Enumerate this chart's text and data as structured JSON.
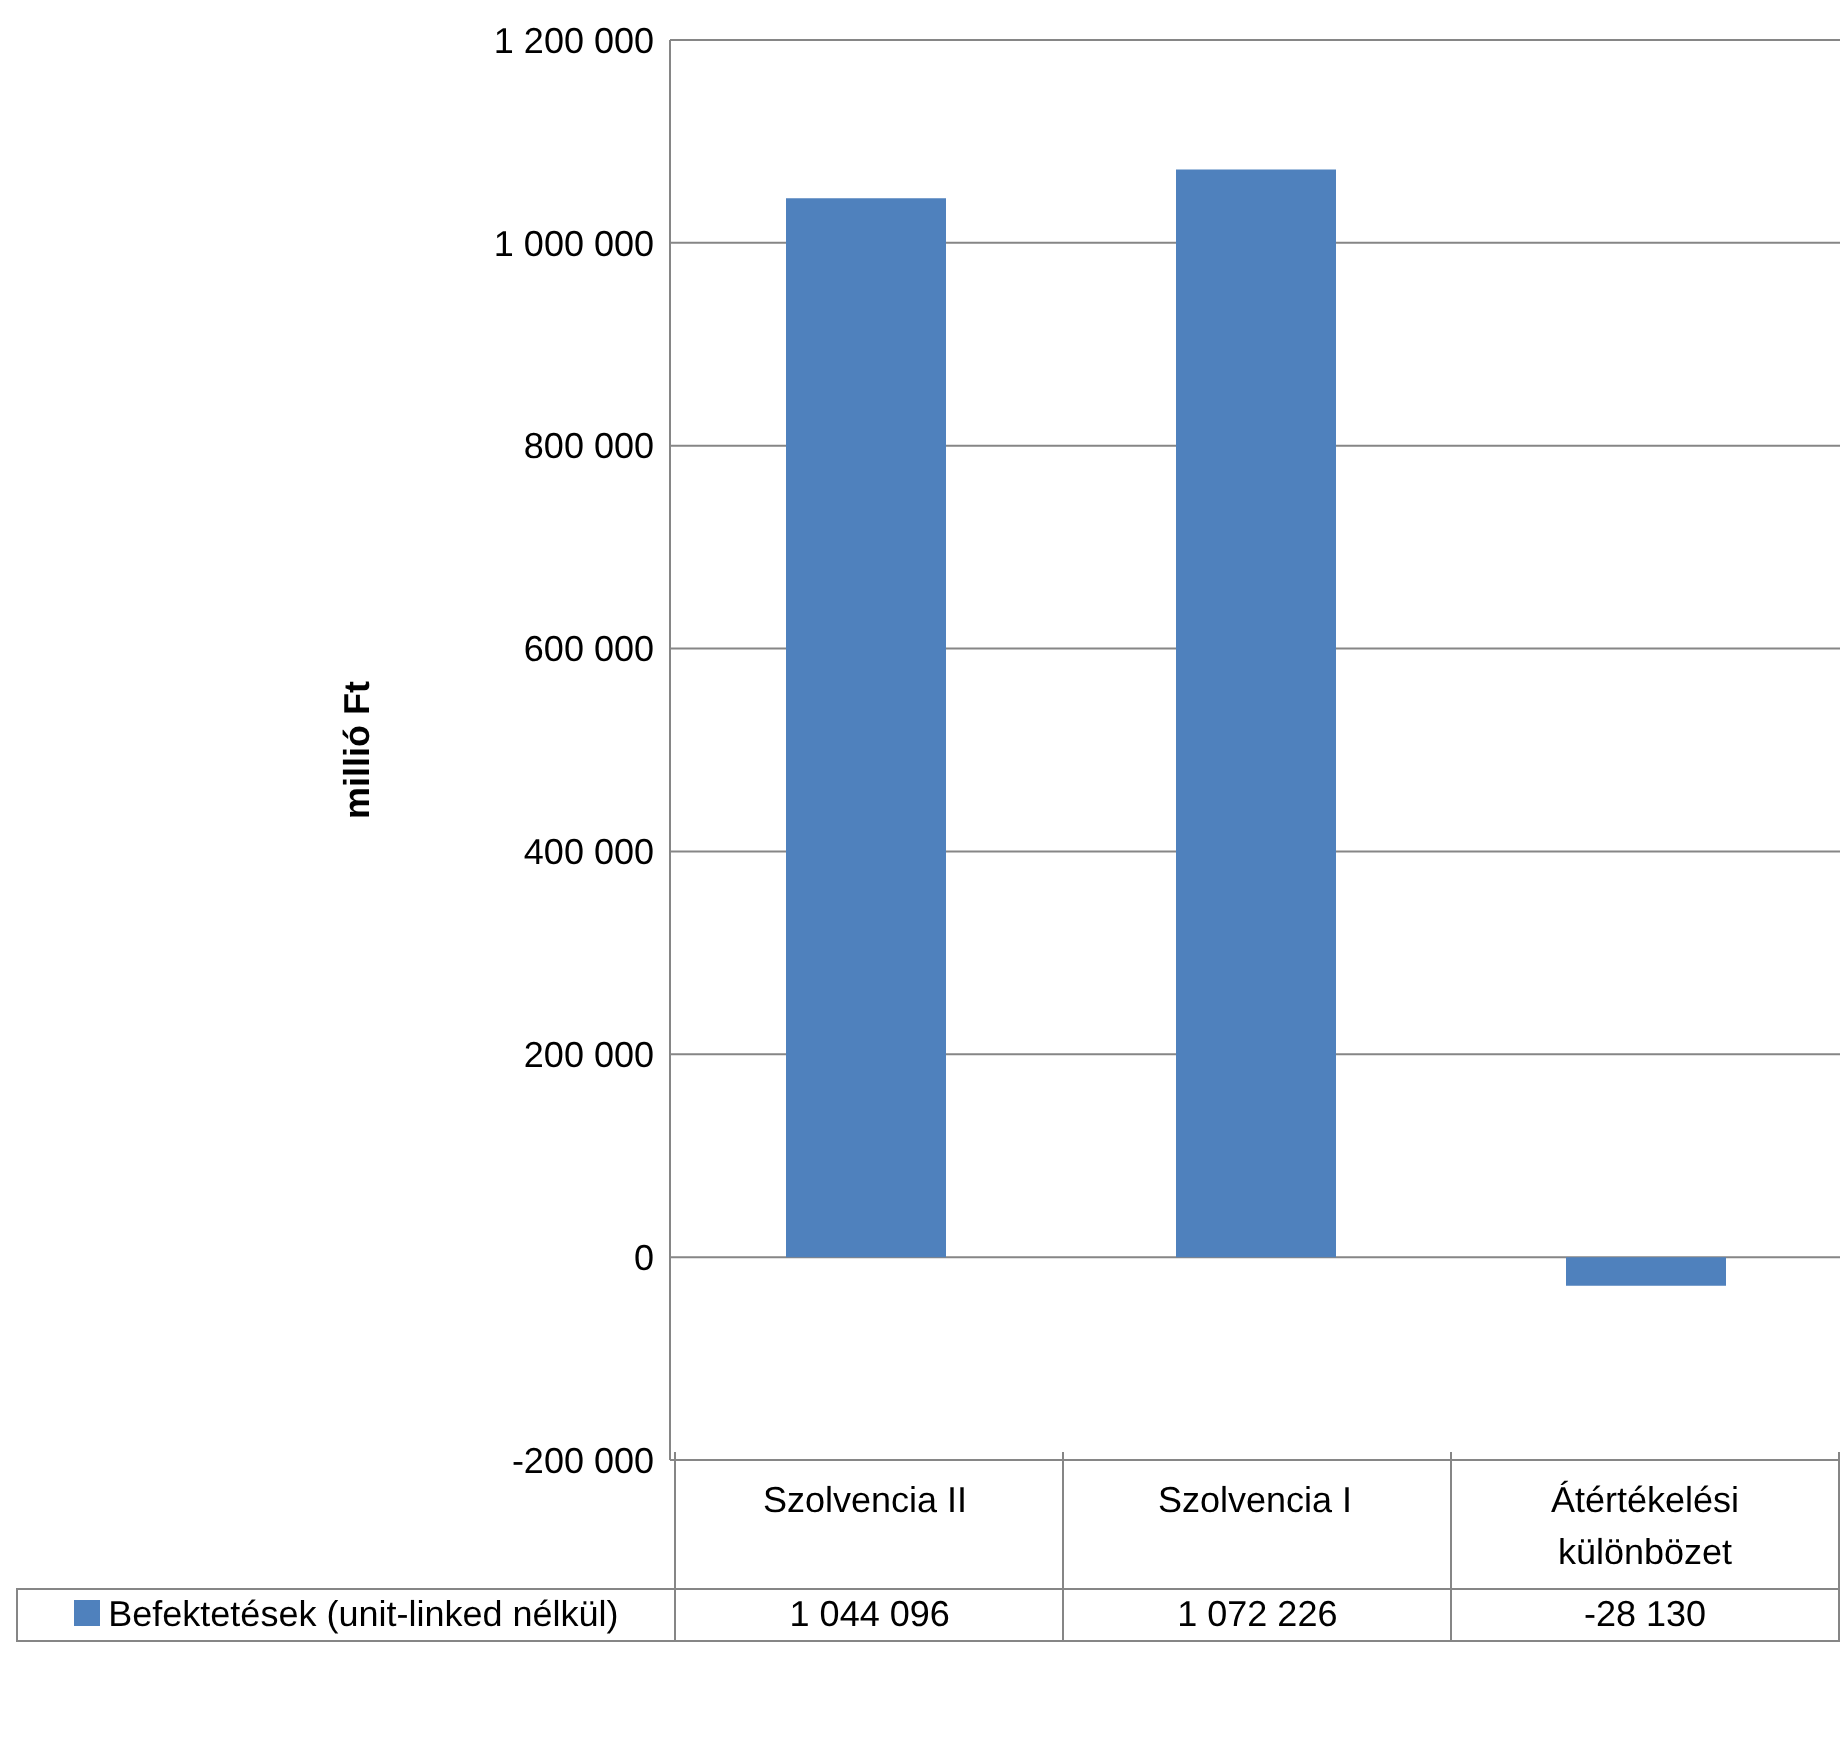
{
  "chart_data": {
    "type": "bar",
    "ylabel": "millió Ft",
    "categories": [
      "Szolvencia II",
      "Szolvencia I",
      "Átértékelési különbözet"
    ],
    "series": [
      {
        "name": "Befektetések (unit-linked nélkül)",
        "color": "#4f81bd",
        "values": [
          1044096,
          1072226,
          -28130
        ]
      }
    ],
    "ylim": [
      -200000,
      1200000
    ],
    "yticks": [
      -200000,
      0,
      200000,
      400000,
      600000,
      800000,
      1000000,
      1200000
    ],
    "grid": "y",
    "legend": "bottom",
    "data_labels": true
  }
}
